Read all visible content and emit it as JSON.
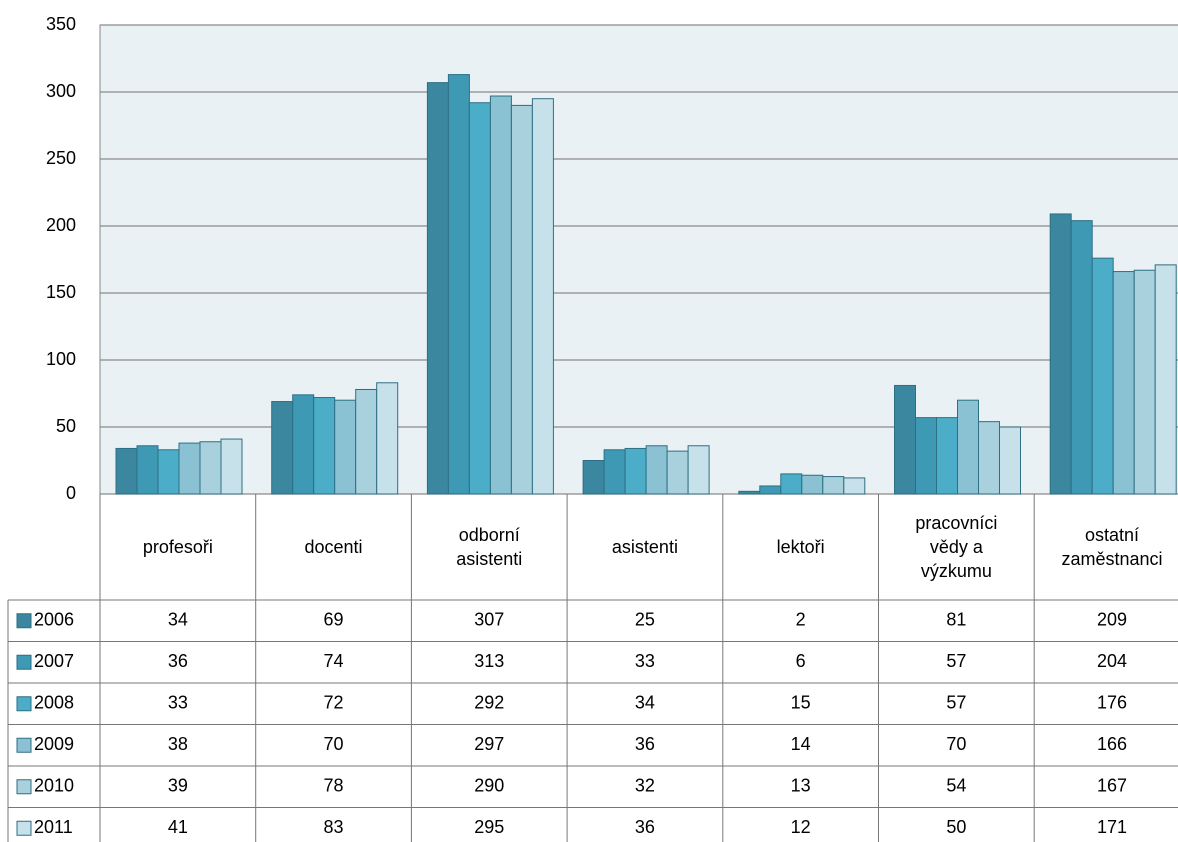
{
  "chart_data": {
    "type": "bar",
    "categories": [
      "profesoři",
      "docenti",
      "odborní asistenti",
      "asistenti",
      "lektoři",
      "pracovníci vědy a výzkumu",
      "ostatní zaměstnanci"
    ],
    "series": [
      {
        "name": "2006",
        "color": "#3b879f",
        "values": [
          34,
          69,
          307,
          25,
          2,
          81,
          209
        ]
      },
      {
        "name": "2007",
        "color": "#3e99b4",
        "values": [
          36,
          74,
          313,
          33,
          6,
          57,
          204
        ]
      },
      {
        "name": "2008",
        "color": "#4badc7",
        "values": [
          33,
          72,
          292,
          34,
          15,
          57,
          176
        ]
      },
      {
        "name": "2009",
        "color": "#8ac2d3",
        "values": [
          38,
          70,
          297,
          36,
          14,
          70,
          166
        ]
      },
      {
        "name": "2010",
        "color": "#a9d0dd",
        "values": [
          39,
          78,
          290,
          32,
          13,
          54,
          167
        ]
      },
      {
        "name": "2011",
        "color": "#c6e1ea",
        "values": [
          41,
          83,
          295,
          36,
          12,
          50,
          171
        ]
      }
    ],
    "ylim": [
      0,
      350
    ],
    "yticks": [
      0,
      50,
      100,
      150,
      200,
      250,
      300,
      350
    ],
    "grid": true
  }
}
